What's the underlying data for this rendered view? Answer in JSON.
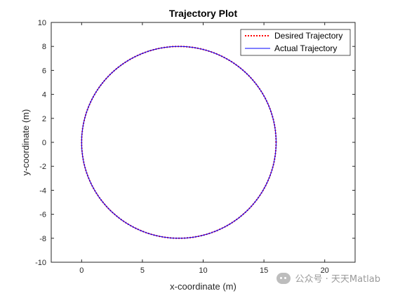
{
  "chart_data": {
    "type": "line",
    "title": "Trajectory Plot",
    "xlabel": "x-coordinate (m)",
    "ylabel": "y-coordinate (m)",
    "xlim": [
      -2.5,
      22.5
    ],
    "ylim": [
      -10,
      10
    ],
    "xticks": [
      0,
      5,
      10,
      15,
      20
    ],
    "yticks": [
      -10,
      -8,
      -6,
      -4,
      -2,
      0,
      2,
      4,
      6,
      8,
      10
    ],
    "grid": false,
    "legend_position": "top-right",
    "series": [
      {
        "name": "Desired Trajectory",
        "color": "#ff0000",
        "style": "dotted",
        "shape": "circle",
        "center": [
          8,
          0
        ],
        "radius": 8
      },
      {
        "name": "Actual Trajectory",
        "color": "#0000ff",
        "style": "solid",
        "shape": "circle",
        "center": [
          8,
          0
        ],
        "radius": 8
      }
    ]
  },
  "watermark": {
    "text": "公众号 · 天天Matlab",
    "icon": "wechat-icon"
  }
}
